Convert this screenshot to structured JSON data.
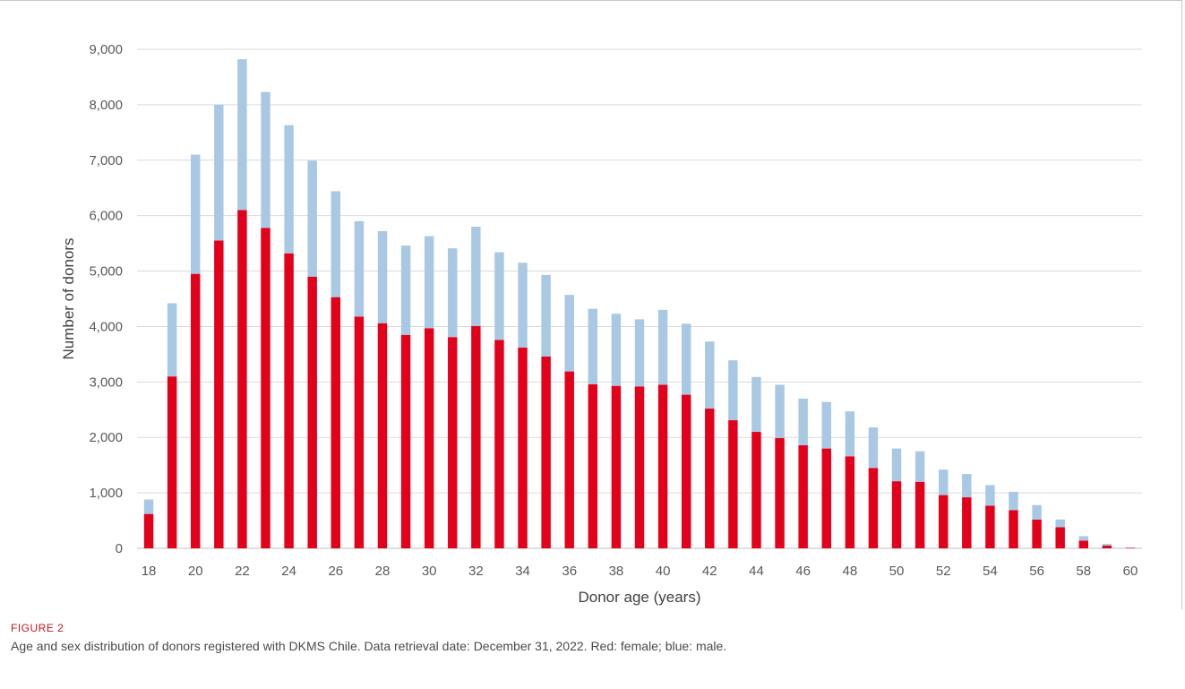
{
  "caption": {
    "label": "FIGURE 2",
    "text": "Age and sex distribution of donors registered with DKMS Chile. Data retrieval date: December 31, 2022. Red: female; blue: male."
  },
  "colors": {
    "female": "#e2001a",
    "male": "#a9c8e3"
  },
  "chart_data": {
    "type": "bar",
    "stacked": true,
    "title": "",
    "xlabel": "Donor age (years)",
    "ylabel": "Number of donors",
    "ylim": [
      0,
      9000
    ],
    "y_ticks": [
      0,
      1000,
      2000,
      3000,
      4000,
      5000,
      6000,
      7000,
      8000,
      9000
    ],
    "y_tick_labels": [
      "0",
      "1,000",
      "2,000",
      "3,000",
      "4,000",
      "5,000",
      "6,000",
      "7,000",
      "8,000",
      "9,000"
    ],
    "categories": [
      18,
      19,
      20,
      21,
      22,
      23,
      24,
      25,
      26,
      27,
      28,
      29,
      30,
      31,
      32,
      33,
      34,
      35,
      36,
      37,
      38,
      39,
      40,
      41,
      42,
      43,
      44,
      45,
      46,
      47,
      48,
      49,
      50,
      51,
      52,
      53,
      54,
      55,
      56,
      57,
      58,
      59,
      60
    ],
    "x_tick_labels": [
      "18",
      "20",
      "22",
      "24",
      "26",
      "28",
      "30",
      "32",
      "34",
      "36",
      "38",
      "40",
      "42",
      "44",
      "46",
      "48",
      "50",
      "52",
      "54",
      "56",
      "58",
      "60"
    ],
    "grid": true,
    "legend": "none",
    "series": [
      {
        "key": "female",
        "values": [
          620,
          3100,
          4950,
          5550,
          6100,
          5780,
          5320,
          4900,
          4530,
          4180,
          4060,
          3850,
          3970,
          3810,
          4010,
          3760,
          3620,
          3460,
          3190,
          2960,
          2930,
          2920,
          2950,
          2770,
          2520,
          2310,
          2100,
          1990,
          1860,
          1800,
          1660,
          1450,
          1210,
          1200,
          960,
          920,
          770,
          690,
          520,
          380,
          140,
          50,
          10
        ]
      },
      {
        "key": "male",
        "values": [
          260,
          1320,
          2150,
          2450,
          2720,
          2450,
          2310,
          2090,
          1910,
          1720,
          1660,
          1610,
          1660,
          1600,
          1790,
          1580,
          1530,
          1470,
          1380,
          1360,
          1300,
          1210,
          1350,
          1280,
          1210,
          1080,
          990,
          960,
          840,
          840,
          810,
          730,
          590,
          550,
          460,
          420,
          370,
          330,
          260,
          140,
          80,
          30,
          5
        ]
      }
    ]
  }
}
